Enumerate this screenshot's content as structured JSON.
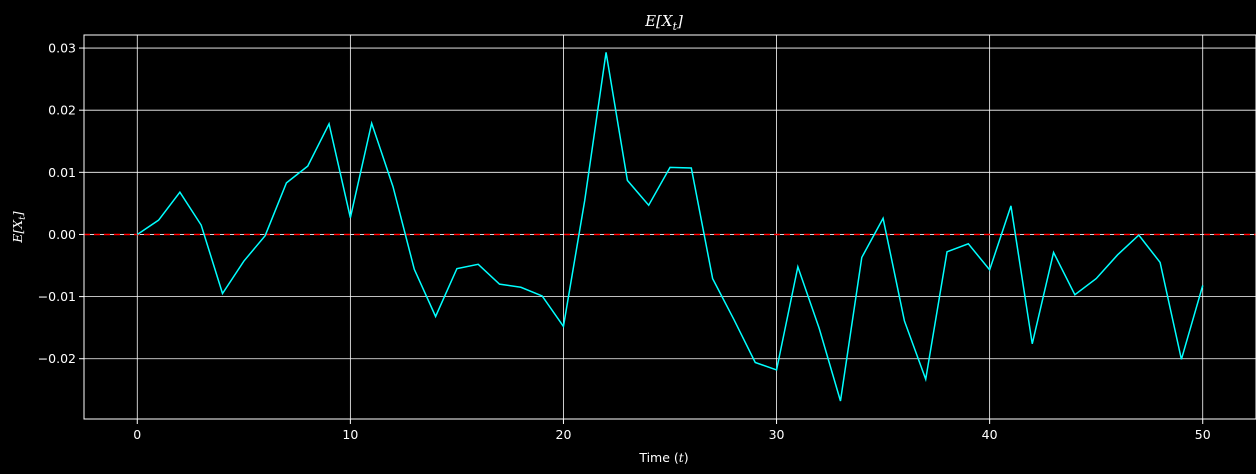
{
  "chart_data": {
    "type": "line",
    "title_base": "E[X",
    "title_sub": "t",
    "title_end": "]",
    "xlabel_base": "Time (",
    "xlabel_var": "t",
    "xlabel_end": ")",
    "ylabel_base": "E[X",
    "ylabel_sub": "t",
    "ylabel_end": "]",
    "xlim": [
      -2.5,
      52.5
    ],
    "ylim": [
      -0.0297,
      0.0321
    ],
    "xticks": [
      0,
      10,
      20,
      30,
      40,
      50
    ],
    "yticks": [
      -0.02,
      -0.01,
      0.0,
      0.01,
      0.02,
      0.03
    ],
    "ytick_labels": [
      "−0.02",
      "−0.01",
      "0.00",
      "0.01",
      "0.02",
      "0.03"
    ],
    "grid": true,
    "colors": {
      "background": "#000000",
      "series": "#00ffff",
      "reference": "#ff0000",
      "grid": "#ffffff",
      "text": "#ffffff"
    },
    "series": [
      {
        "x": [
          0,
          1,
          2,
          3,
          4,
          5,
          6,
          7,
          8,
          9,
          10,
          11,
          12,
          13,
          14,
          15,
          16,
          17,
          18,
          19,
          20,
          21,
          22,
          23,
          24,
          25,
          26,
          27,
          28,
          29,
          30,
          31,
          32,
          33,
          34,
          35,
          36,
          37,
          38,
          39,
          40,
          41,
          42,
          43,
          44,
          45,
          46,
          47,
          48,
          49,
          50
        ],
        "y": [
          0.0,
          0.0023,
          0.0068,
          0.0015,
          -0.0095,
          -0.0043,
          -0.0002,
          0.0083,
          0.011,
          0.0178,
          0.0027,
          0.0179,
          0.0077,
          -0.0056,
          -0.0132,
          -0.0055,
          -0.0048,
          -0.008,
          -0.0085,
          -0.0099,
          -0.0148,
          0.0055,
          0.0293,
          0.0087,
          0.0047,
          0.0108,
          0.0107,
          -0.0071,
          -0.0137,
          -0.0206,
          -0.0218,
          -0.0052,
          -0.0151,
          -0.0268,
          -0.0037,
          0.0026,
          -0.0139,
          -0.0233,
          -0.0028,
          -0.0015,
          -0.0057,
          0.0046,
          -0.0176,
          -0.0029,
          -0.0097,
          -0.0071,
          -0.0033,
          -0.0001,
          -0.0045,
          -0.0201,
          -0.0082
        ]
      }
    ],
    "reference_line": {
      "y": 0.0,
      "style": "dashed"
    }
  }
}
